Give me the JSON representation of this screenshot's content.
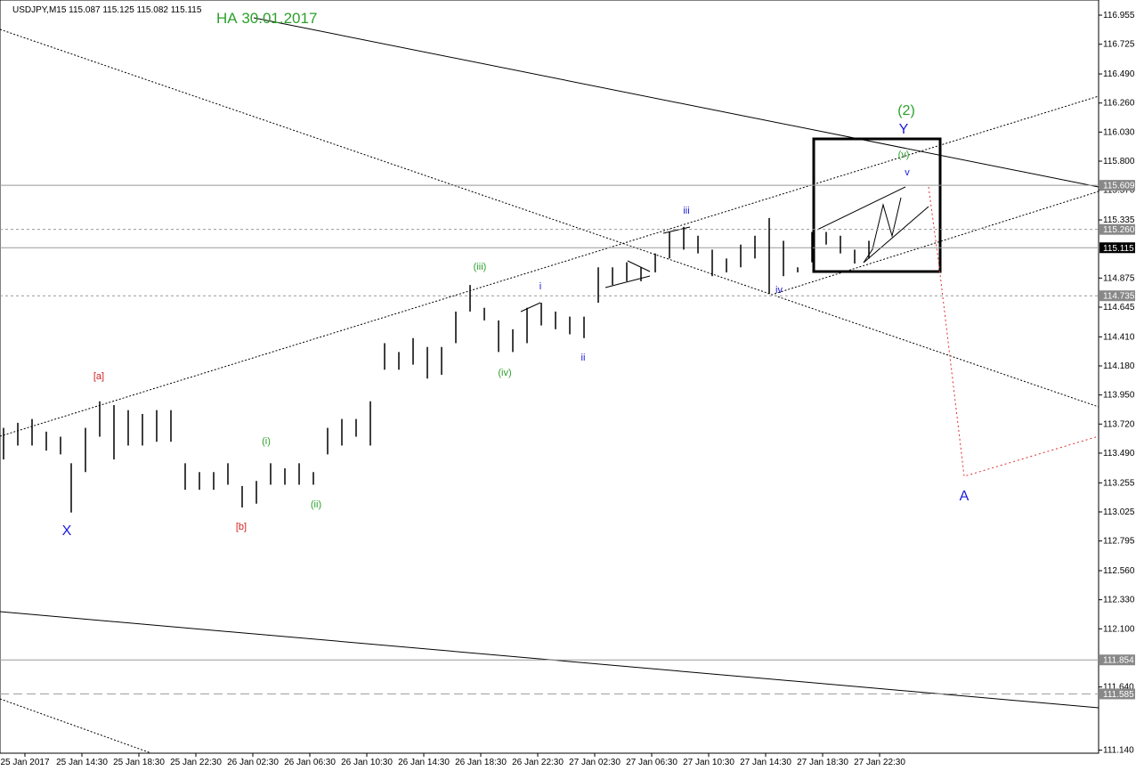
{
  "chart_data": {
    "type": "hlbar",
    "header": "USDJPY,M15  115.087 115.125 115.082 115.115",
    "annotation_title": "НА 30.01.2017",
    "color": "#000000",
    "x": [
      1,
      5,
      9,
      13,
      17,
      20,
      24,
      28,
      32,
      36,
      40,
      44,
      48,
      52,
      56,
      60,
      64,
      68,
      72,
      76,
      80,
      84,
      88,
      92,
      96,
      100,
      104,
      108,
      112,
      116,
      120,
      124,
      128,
      132,
      136,
      140,
      144,
      148,
      152,
      156,
      160,
      164,
      168,
      172,
      176,
      180,
      184,
      188,
      192,
      196,
      200,
      204,
      208,
      212,
      216,
      220,
      224,
      228,
      232,
      236,
      240,
      244
    ],
    "high": [
      113.69,
      113.73,
      113.76,
      113.66,
      113.62,
      113.41,
      113.69,
      113.9,
      113.87,
      113.83,
      113.8,
      113.83,
      113.83,
      113.41,
      113.34,
      113.34,
      113.41,
      113.23,
      113.27,
      113.41,
      113.37,
      113.41,
      113.34,
      113.69,
      113.76,
      113.76,
      113.9,
      114.36,
      114.29,
      114.4,
      114.33,
      114.33,
      114.61,
      114.82,
      114.64,
      114.54,
      114.47,
      114.64,
      114.68,
      114.61,
      114.57,
      114.57,
      114.96,
      114.96,
      115.0,
      114.96,
      115.07,
      115.24,
      115.28,
      115.21,
      115.1,
      115.03,
      115.14,
      115.21,
      115.35,
      115.17,
      114.96,
      115.24,
      115.24,
      115.21,
      115.1,
      115.17
    ],
    "low": [
      113.44,
      113.55,
      113.55,
      113.51,
      113.48,
      113.02,
      113.34,
      113.62,
      113.44,
      113.55,
      113.55,
      113.58,
      113.58,
      113.2,
      113.2,
      113.2,
      113.24,
      113.06,
      113.09,
      113.24,
      113.24,
      113.24,
      113.24,
      113.48,
      113.55,
      113.62,
      113.55,
      114.15,
      114.15,
      114.19,
      114.08,
      114.11,
      114.36,
      114.61,
      114.54,
      114.29,
      114.29,
      114.36,
      114.5,
      114.47,
      114.43,
      114.4,
      114.68,
      114.82,
      114.85,
      114.85,
      114.92,
      115.03,
      115.1,
      115.07,
      114.89,
      114.92,
      114.96,
      115.03,
      114.75,
      114.89,
      114.92,
      115.0,
      115.14,
      115.07,
      114.99,
      115.03
    ],
    "xlim": [
      0,
      308.5
    ],
    "xticks": [
      {
        "value": 7,
        "label": "25 Jan 2017"
      },
      {
        "value": 23,
        "label": "25 Jan 14:30"
      },
      {
        "value": 39,
        "label": "25 Jan 18:30"
      },
      {
        "value": 55,
        "label": "25 Jan 22:30"
      },
      {
        "value": 71,
        "label": "26 Jan 02:30"
      },
      {
        "value": 87,
        "label": "26 Jan 06:30"
      },
      {
        "value": 103,
        "label": "26 Jan 10:30"
      },
      {
        "value": 119,
        "label": "26 Jan 14:30"
      },
      {
        "value": 135,
        "label": "26 Jan 18:30"
      },
      {
        "value": 151,
        "label": "26 Jan 22:30"
      },
      {
        "value": 167,
        "label": "27 Jan 02:30"
      },
      {
        "value": 183,
        "label": "27 Jan 06:30"
      },
      {
        "value": 199,
        "label": "27 Jan 10:30"
      },
      {
        "value": 215,
        "label": "27 Jan 14:30"
      },
      {
        "value": 231,
        "label": "27 Jan 18:30"
      },
      {
        "value": 247,
        "label": "27 Jan 22:30"
      }
    ],
    "ylim": [
      111.116,
      117.075
    ],
    "yticks": [
      {
        "value": 116.955,
        "label": "116.955"
      },
      {
        "value": 116.725,
        "label": "116.725"
      },
      {
        "value": 116.49,
        "label": "116.490"
      },
      {
        "value": 116.26,
        "label": "116.260"
      },
      {
        "value": 116.03,
        "label": "116.030"
      },
      {
        "value": 115.8,
        "label": "115.800"
      },
      {
        "value": 115.57,
        "label": "115.570"
      },
      {
        "value": 115.335,
        "label": "115.335"
      },
      {
        "value": 114.875,
        "label": "114.875"
      },
      {
        "value": 114.645,
        "label": "114.645"
      },
      {
        "value": 114.41,
        "label": "114.410"
      },
      {
        "value": 114.18,
        "label": "114.180"
      },
      {
        "value": 113.95,
        "label": "113.950"
      },
      {
        "value": 113.72,
        "label": "113.720"
      },
      {
        "value": 113.49,
        "label": "113.490"
      },
      {
        "value": 113.255,
        "label": "113.255"
      },
      {
        "value": 113.025,
        "label": "113.025"
      },
      {
        "value": 112.795,
        "label": "112.795"
      },
      {
        "value": 112.56,
        "label": "112.560"
      },
      {
        "value": 112.33,
        "label": "112.330"
      },
      {
        "value": 112.1,
        "label": "112.100"
      },
      {
        "value": 111.64,
        "label": "111.640"
      },
      {
        "value": 111.14,
        "label": "111.140"
      }
    ],
    "levels": [
      {
        "value": 115.609,
        "label": "115.609",
        "style": "solid"
      },
      {
        "value": 115.26,
        "label": "115.260",
        "style": "dashed"
      },
      {
        "value": 115.115,
        "label": "115.115",
        "style": "current"
      },
      {
        "value": 114.735,
        "label": "114.735",
        "style": "dashed"
      },
      {
        "value": 111.854,
        "label": "111.854",
        "style": "solid"
      },
      {
        "value": 111.585,
        "label": "111.585",
        "style": "longdash"
      }
    ],
    "wave_labels": [
      "(2)",
      "Y",
      "(v)",
      "v",
      "iii",
      "(iii)",
      "i",
      "iv",
      "(iv)",
      "ii",
      "[a]",
      "(i)",
      "(ii)",
      "[b]",
      "X",
      "A"
    ]
  }
}
